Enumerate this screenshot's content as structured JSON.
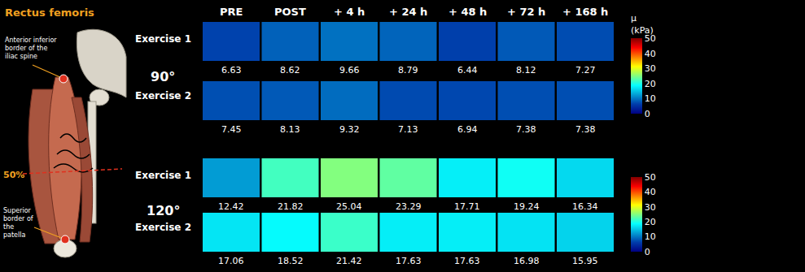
{
  "illustration": {
    "title": "Rectus femoris",
    "top_landmark": "Anterior inferior border of the iliac spine",
    "midpoint": "50%",
    "bottom_landmark": "Superior border of the patella"
  },
  "chart_data": {
    "type": "heatmap",
    "color": "Jet",
    "columns": [
      "PRE",
      "POST",
      "+ 4 h",
      "+ 24 h",
      "+ 48 h",
      "+ 72 h",
      "+ 168 h"
    ],
    "angles": [
      {
        "label": "90°",
        "rows": [
          {
            "name": "Exercise 1",
            "values": [
              6.63,
              8.62,
              9.66,
              8.79,
              6.44,
              8.12,
              7.27
            ]
          },
          {
            "name": "Exercise 2",
            "values": [
              7.45,
              8.13,
              9.32,
              7.13,
              6.94,
              7.38,
              7.38
            ]
          }
        ],
        "colorbar": {
          "title": [
            "μ",
            "(kPa)"
          ],
          "range": [
            0,
            50
          ],
          "ticks": [
            0,
            10,
            20,
            30,
            40,
            50
          ]
        }
      },
      {
        "label": "120°",
        "rows": [
          {
            "name": "Exercise 1",
            "values": [
              12.42,
              21.82,
              25.04,
              23.29,
              17.71,
              19.24,
              16.34
            ]
          },
          {
            "name": "Exercise 2",
            "values": [
              17.06,
              18.52,
              21.42,
              17.63,
              17.63,
              16.98,
              15.95
            ]
          }
        ],
        "colorbar": {
          "range": [
            0,
            50
          ],
          "ticks": [
            0,
            10,
            20,
            30,
            40,
            50
          ]
        }
      }
    ]
  }
}
